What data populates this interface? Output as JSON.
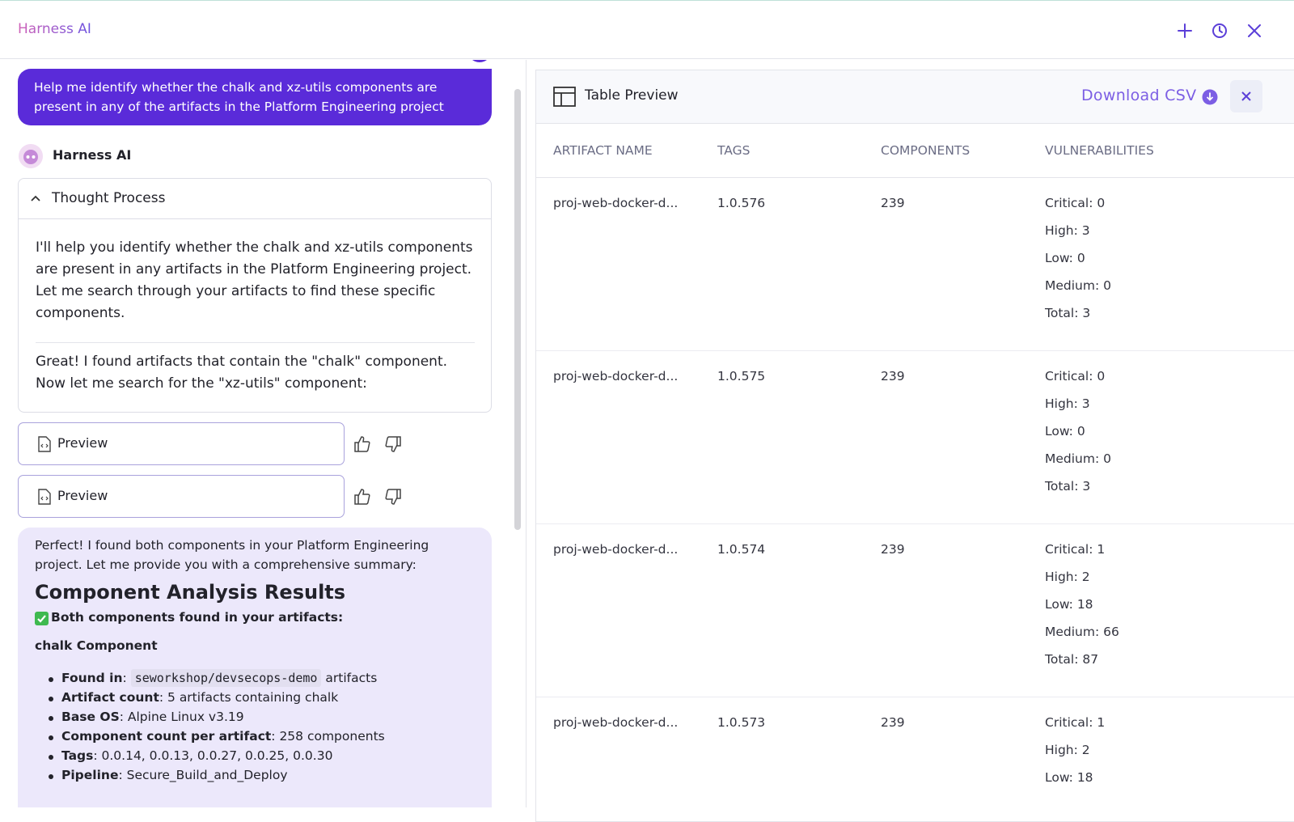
{
  "header": {
    "title": "Harness AI"
  },
  "chat": {
    "user_message": "Help me identify whether the chalk and xz-utils components are present in any of the artifacts in the Platform Engineering project",
    "assistant_name": "Harness AI",
    "thought": {
      "title": "Thought Process",
      "paragraphs": [
        "I'll help you identify whether the chalk and xz-utils components are present in any artifacts in the Platform Engineering project. Let me search through your artifacts to find these specific components.",
        "Great! I found artifacts that contain the \"chalk\" component. Now let me search for the \"xz-utils\" component:"
      ]
    },
    "previews": [
      {
        "label": "Preview"
      },
      {
        "label": "Preview"
      }
    ],
    "summary": {
      "intro": "Perfect! I found both components in your Platform Engineering project. Let me provide you with a comprehensive summary:",
      "heading": "Component Analysis Results",
      "found": "Both components found in your artifacts:",
      "section": "chalk Component",
      "found_in": {
        "label": "Found in",
        "text": ": ",
        "code": "seworkshop/devsecops-demo",
        "suffix": " artifacts"
      },
      "items": [
        {
          "label": "Artifact count",
          "text": ": 5 artifacts containing chalk"
        },
        {
          "label": "Base OS",
          "text": ": Alpine Linux v3.19"
        },
        {
          "label": "Component count per artifact",
          "text": ": 258 components"
        },
        {
          "label": "Tags",
          "text": ": 0.0.14, 0.0.13, 0.0.27, 0.0.25, 0.0.30"
        },
        {
          "label": "Pipeline",
          "text": ": Secure_Build_and_Deploy"
        }
      ]
    }
  },
  "table_preview": {
    "title": "Table Preview",
    "download": "Download CSV",
    "columns": [
      "ARTIFACT NAME",
      "TAGS",
      "COMPONENTS",
      "VULNERABILITIES"
    ],
    "rows": [
      {
        "name": "proj-web-docker-d...",
        "tag": "1.0.576",
        "components": "239",
        "vulnerabilities": [
          "Critical: 0",
          "High: 3",
          "Low: 0",
          "Medium: 0",
          "Total: 3"
        ]
      },
      {
        "name": "proj-web-docker-d...",
        "tag": "1.0.575",
        "components": "239",
        "vulnerabilities": [
          "Critical: 0",
          "High: 3",
          "Low: 0",
          "Medium: 0",
          "Total: 3"
        ]
      },
      {
        "name": "proj-web-docker-d...",
        "tag": "1.0.574",
        "components": "239",
        "vulnerabilities": [
          "Critical: 1",
          "High: 2",
          "Low: 18",
          "Medium: 66",
          "Total: 87"
        ]
      },
      {
        "name": "proj-web-docker-d...",
        "tag": "1.0.573",
        "components": "239",
        "vulnerabilities": [
          "Critical: 1",
          "High: 2",
          "Low: 18"
        ]
      }
    ]
  }
}
